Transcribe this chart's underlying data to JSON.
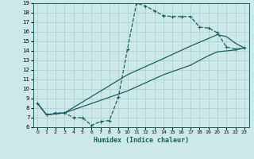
{
  "xlabel": "Humidex (Indice chaleur)",
  "xlim": [
    -0.5,
    23.5
  ],
  "ylim": [
    6,
    19
  ],
  "xticks": [
    0,
    1,
    2,
    3,
    4,
    5,
    6,
    7,
    8,
    9,
    10,
    11,
    12,
    13,
    14,
    15,
    16,
    17,
    18,
    19,
    20,
    21,
    22,
    23
  ],
  "yticks": [
    6,
    7,
    8,
    9,
    10,
    11,
    12,
    13,
    14,
    15,
    16,
    17,
    18,
    19
  ],
  "bg_color": "#cce8e8",
  "grid_color": "#aacece",
  "line_color": "#1a6060",
  "line1_x": [
    0,
    1,
    2,
    3,
    4,
    5,
    6,
    7,
    8,
    9,
    10,
    11,
    12,
    13,
    14,
    15,
    16,
    17,
    18,
    19,
    20,
    21,
    22,
    23
  ],
  "line1_y": [
    8.5,
    7.3,
    7.5,
    7.5,
    7.0,
    7.0,
    6.2,
    6.6,
    6.7,
    9.2,
    14.2,
    19.0,
    18.7,
    18.2,
    17.7,
    17.6,
    17.6,
    17.6,
    16.5,
    16.4,
    15.9,
    14.4,
    14.2,
    14.3
  ],
  "line2_x": [
    0,
    1,
    3,
    10,
    14,
    17,
    19,
    20,
    21,
    22,
    23
  ],
  "line2_y": [
    8.5,
    7.3,
    7.5,
    11.5,
    13.2,
    14.5,
    15.3,
    15.7,
    15.5,
    14.8,
    14.3
  ],
  "line3_x": [
    0,
    1,
    3,
    10,
    14,
    17,
    19,
    20,
    21,
    22,
    23
  ],
  "line3_y": [
    8.5,
    7.3,
    7.5,
    9.8,
    11.5,
    12.5,
    13.5,
    13.9,
    14.0,
    14.1,
    14.3
  ]
}
